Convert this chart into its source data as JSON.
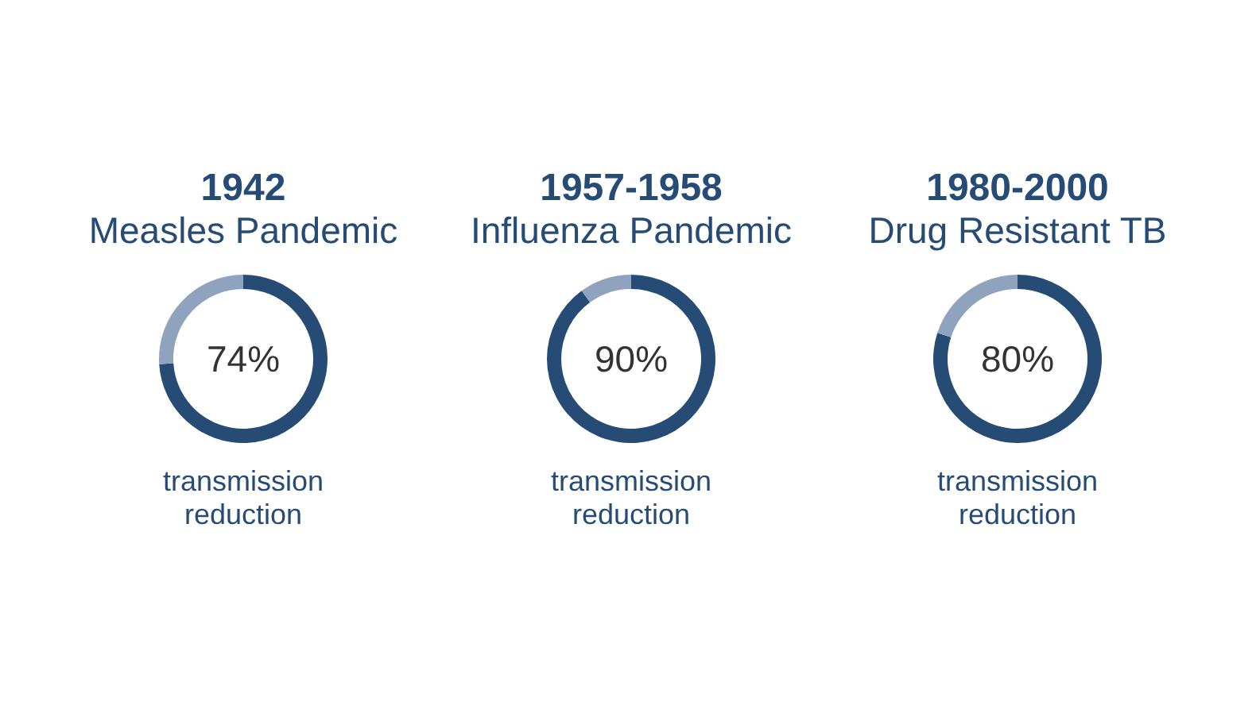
{
  "chart_data": [
    {
      "type": "donut",
      "title": "1942",
      "subtitle": "Measles Pandemic",
      "categories": [
        null,
        null
      ],
      "values": [
        74,
        26
      ],
      "colors": [
        "#264b75",
        "#8fa3bf"
      ],
      "annotations": [
        "74%",
        "transmission reduction"
      ]
    },
    {
      "type": "donut",
      "title": "1957-1958",
      "subtitle": "Influenza Pandemic",
      "categories": [
        null,
        null
      ],
      "values": [
        90,
        10
      ],
      "colors": [
        "#264b75",
        "#8fa3bf"
      ],
      "annotations": [
        "90%",
        "transmission reduction"
      ]
    },
    {
      "type": "donut",
      "title": "1980-2000",
      "subtitle": "Drug Resistant TB",
      "categories": [
        null,
        null
      ],
      "values": [
        80,
        20
      ],
      "colors": [
        "#264b75",
        "#8fa3bf"
      ],
      "annotations": [
        "80%",
        "transmission reduction"
      ]
    }
  ]
}
